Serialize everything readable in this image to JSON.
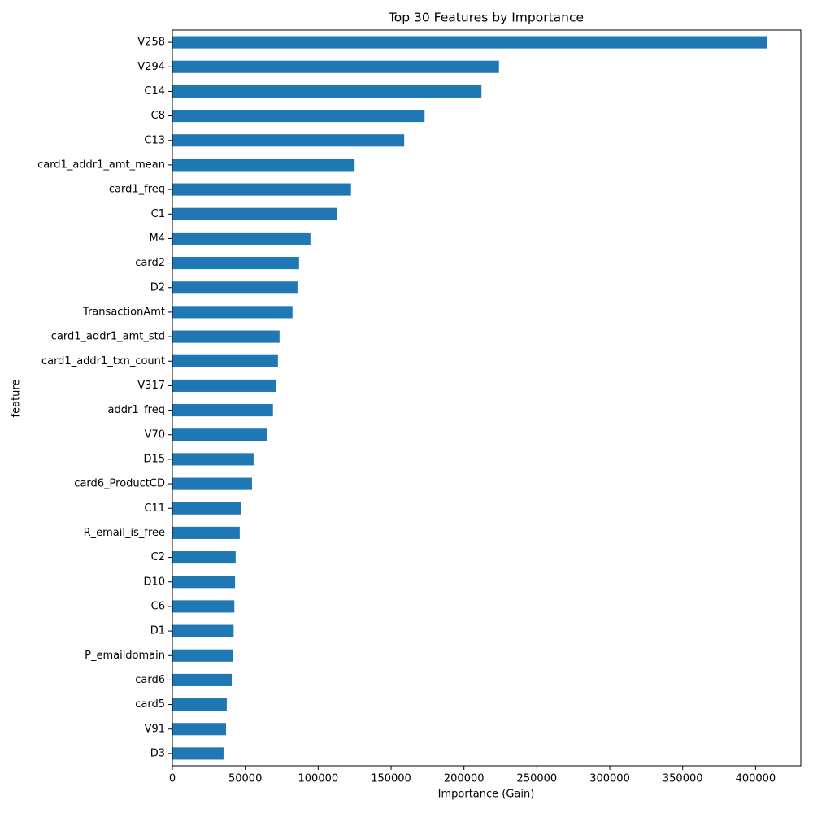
{
  "chart_data": {
    "type": "barh",
    "title": "Top 30 Features by Importance",
    "xlabel": "Importance (Gain)",
    "ylabel": "feature",
    "categories": [
      "V258",
      "V294",
      "C14",
      "C8",
      "C13",
      "card1_addr1_amt_mean",
      "card1_freq",
      "C1",
      "M4",
      "card2",
      "D2",
      "TransactionAmt",
      "card1_addr1_amt_std",
      "card1_addr1_txn_count",
      "V317",
      "addr1_freq",
      "V70",
      "D15",
      "card6_ProductCD",
      "C11",
      "R_email_is_free",
      "C2",
      "D10",
      "C6",
      "D1",
      "P_emaildomain",
      "card6",
      "card5",
      "V91",
      "D3"
    ],
    "values": [
      408000,
      224000,
      212000,
      173000,
      159000,
      125000,
      122500,
      113000,
      94700,
      86900,
      85800,
      82400,
      73500,
      72400,
      71300,
      69000,
      65200,
      55700,
      54600,
      47300,
      46200,
      43400,
      43000,
      42500,
      42000,
      41500,
      40700,
      37300,
      36800,
      35100
    ],
    "color": "#1f77b4",
    "xlim": [
      0,
      431000
    ],
    "xticks": [
      0,
      50000,
      100000,
      150000,
      200000,
      250000,
      300000,
      350000,
      400000
    ],
    "grid": false
  }
}
